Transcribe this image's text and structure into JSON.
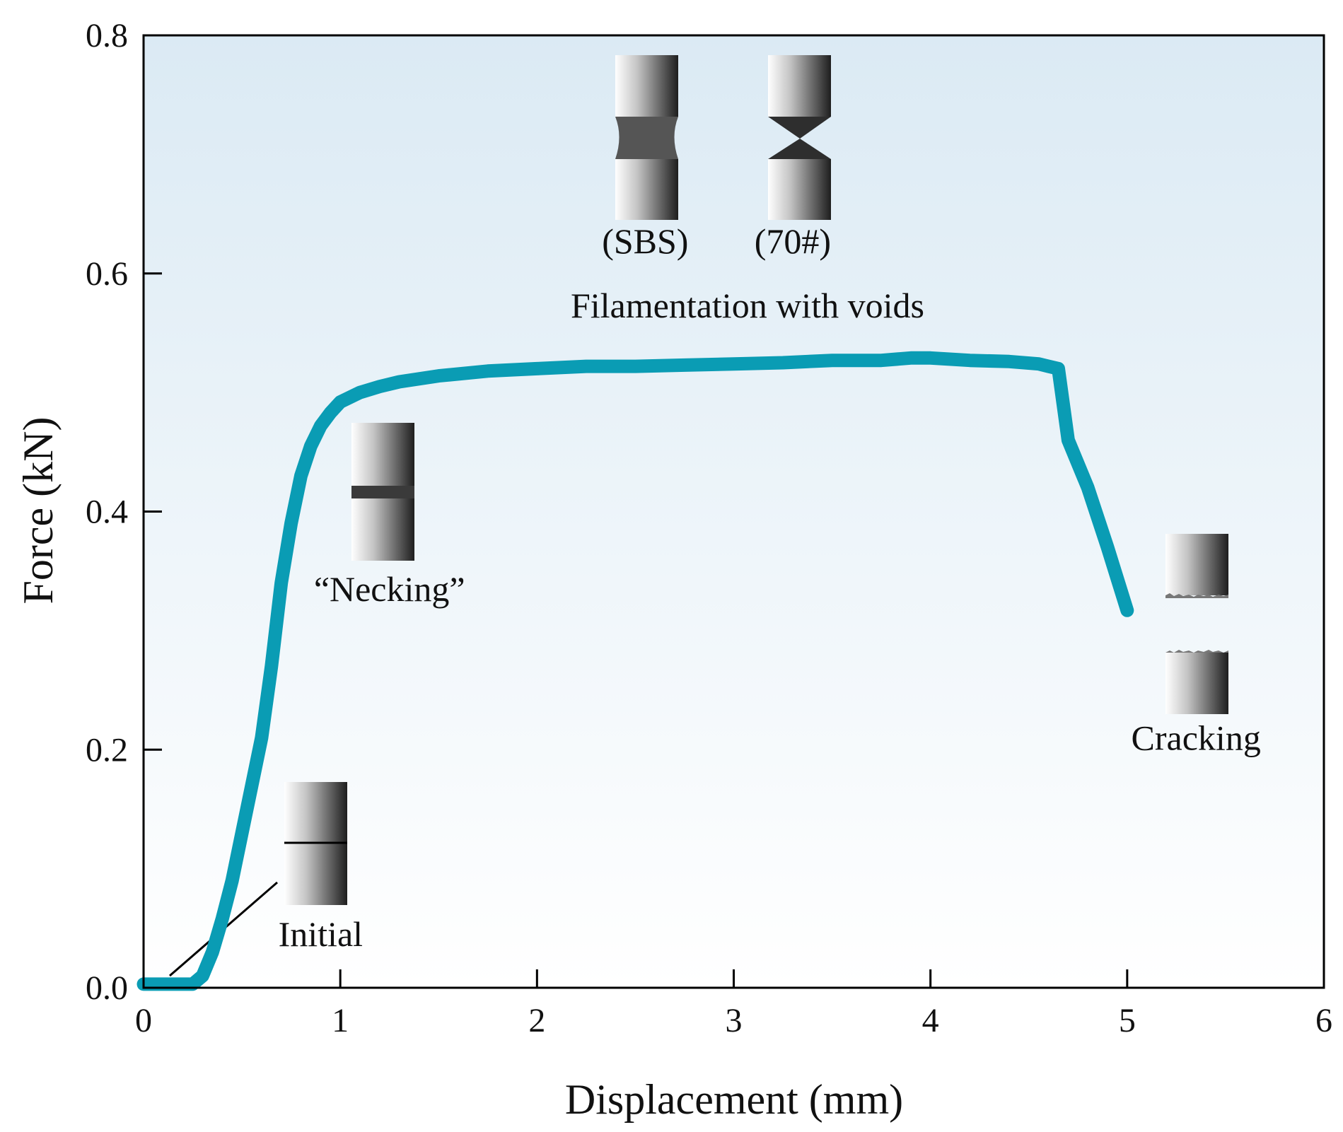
{
  "chart_data": {
    "type": "line",
    "title": "",
    "xlabel": "Displacement (mm)",
    "ylabel": "Force (kN)",
    "xlim": [
      0,
      6
    ],
    "ylim": [
      0,
      0.8
    ],
    "x_ticks": [
      "0",
      "1",
      "2",
      "3",
      "4",
      "5",
      "6"
    ],
    "y_ticks": [
      "0.0",
      "0.2",
      "0.4",
      "0.6",
      "0.8"
    ],
    "grid": false,
    "legend": "none",
    "background_gradient": [
      "#dbeaf4",
      "#ffffff"
    ],
    "series": [
      {
        "color": "#0a9cb4",
        "x": [
          0.0,
          0.1,
          0.2,
          0.25,
          0.3,
          0.35,
          0.4,
          0.45,
          0.5,
          0.55,
          0.6,
          0.65,
          0.7,
          0.75,
          0.8,
          0.85,
          0.9,
          0.95,
          1.0,
          1.1,
          1.2,
          1.3,
          1.5,
          1.75,
          2.0,
          2.25,
          2.5,
          2.75,
          3.0,
          3.25,
          3.5,
          3.75,
          3.9,
          4.0,
          4.2,
          4.4,
          4.55,
          4.6,
          4.65,
          4.7,
          4.8,
          4.9,
          5.0
        ],
        "y": [
          0.003,
          0.003,
          0.003,
          0.003,
          0.01,
          0.03,
          0.058,
          0.09,
          0.13,
          0.17,
          0.21,
          0.27,
          0.34,
          0.39,
          0.43,
          0.455,
          0.472,
          0.483,
          0.492,
          0.5,
          0.505,
          0.509,
          0.514,
          0.518,
          0.52,
          0.522,
          0.522,
          0.523,
          0.524,
          0.525,
          0.527,
          0.527,
          0.529,
          0.529,
          0.527,
          0.526,
          0.524,
          0.522,
          0.52,
          0.46,
          0.42,
          0.37,
          0.317
        ]
      }
    ],
    "annotations": [
      {
        "text": "Initial",
        "x": 0.9,
        "y": 0.035
      },
      {
        "text": "“Necking”",
        "x": 1.25,
        "y": 0.325
      },
      {
        "text": "(SBS)",
        "x": 2.55,
        "y": 0.617
      },
      {
        "text": "(70#)",
        "x": 3.3,
        "y": 0.617
      },
      {
        "text": "Filamentation with voids",
        "x": 3.07,
        "y": 0.563
      },
      {
        "text": "Cracking",
        "x": 5.35,
        "y": 0.2
      }
    ]
  }
}
